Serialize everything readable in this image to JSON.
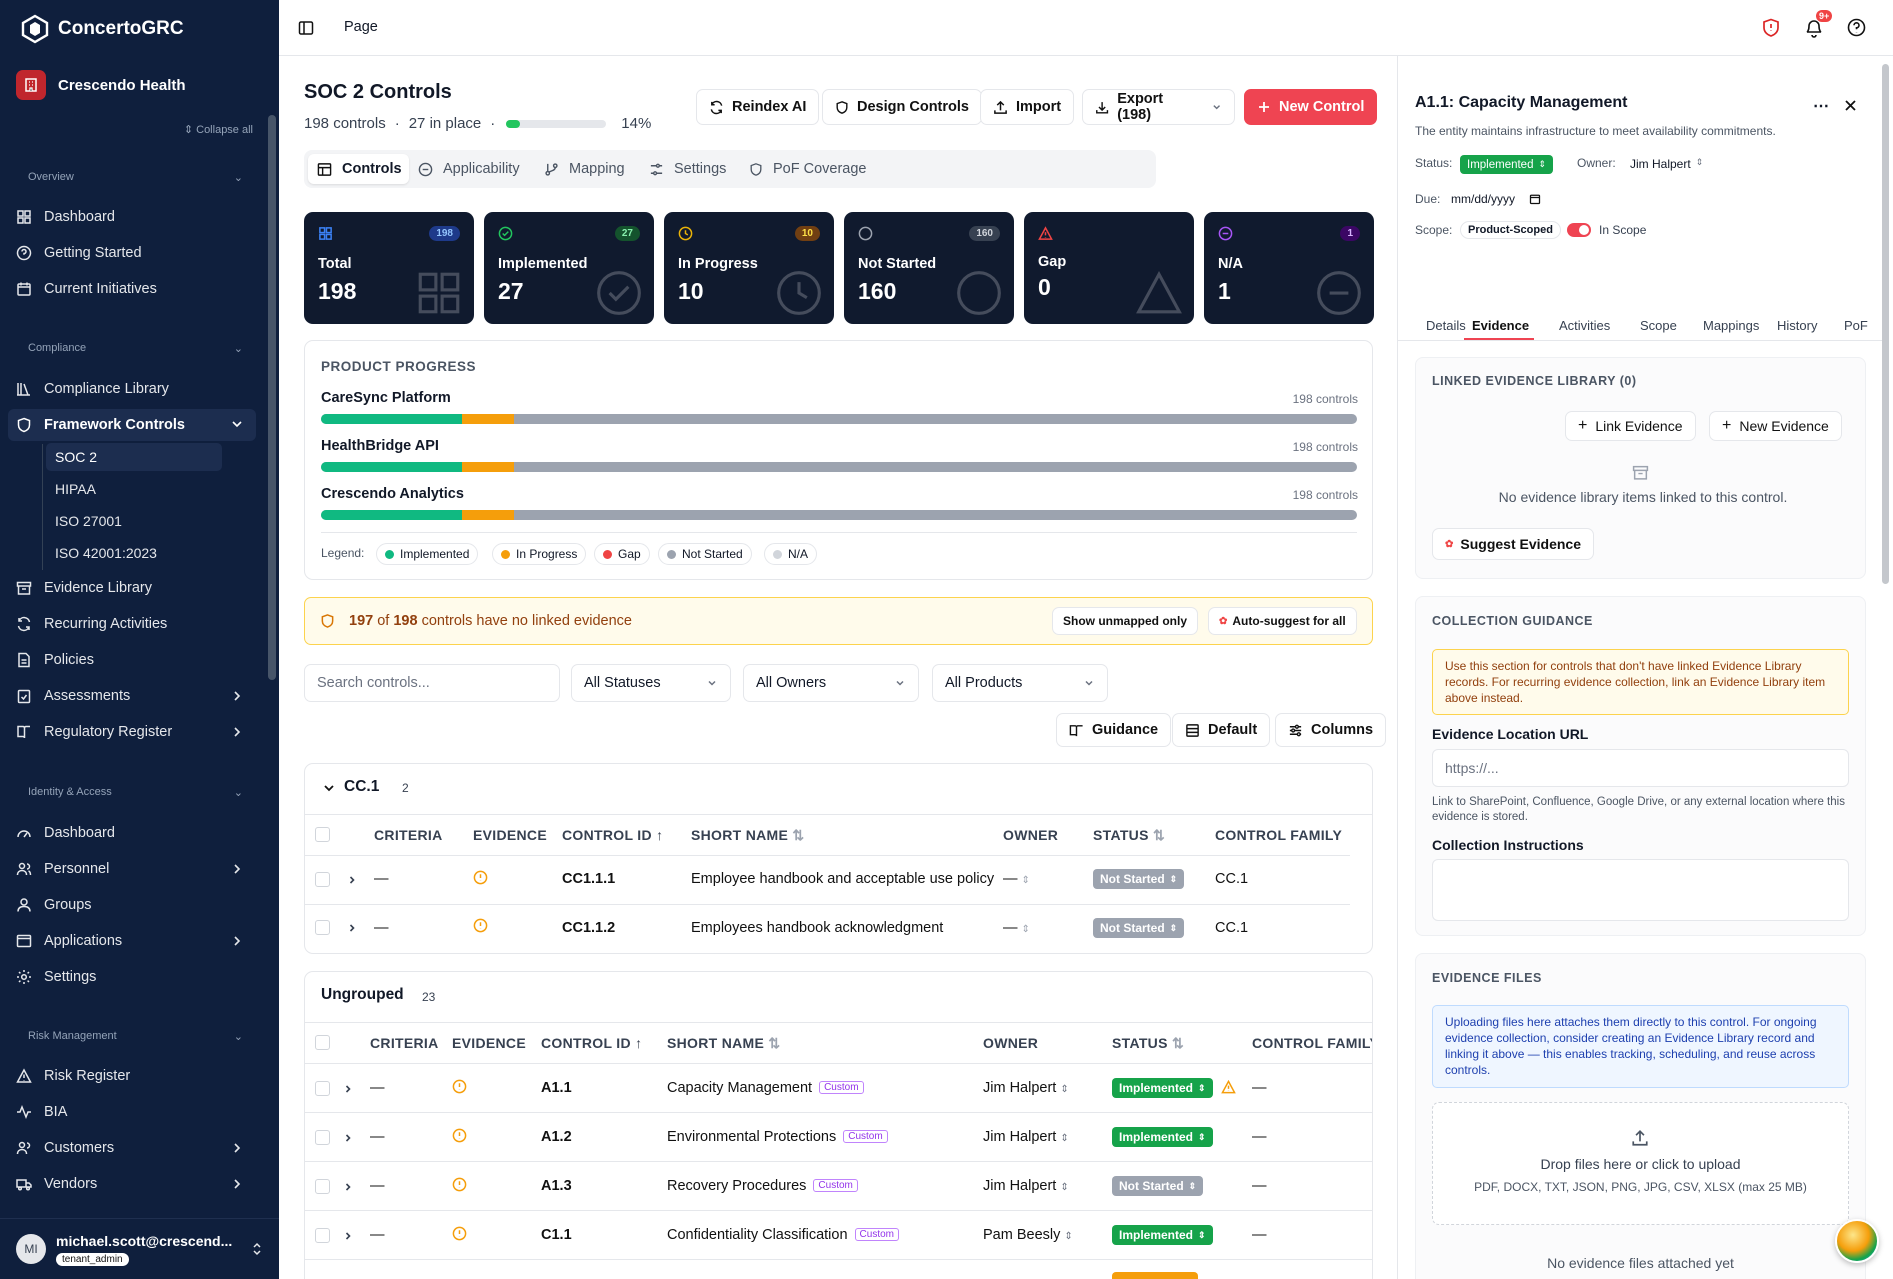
{
  "app": {
    "name": "ConcertoGRC",
    "org": "Crescendo Health",
    "collapse_all": "Collapse all"
  },
  "sidebar": {
    "sections": {
      "overview": "Overview",
      "compliance": "Compliance",
      "identity": "Identity & Access",
      "risk": "Risk Management"
    },
    "overview": [
      "Dashboard",
      "Getting Started",
      "Current Initiatives"
    ],
    "compliance": [
      "Compliance Library",
      "Framework Controls",
      "Evidence Library",
      "Recurring Activities",
      "Policies",
      "Assessments",
      "Regulatory Register"
    ],
    "frameworks": [
      "SOC 2",
      "HIPAA",
      "ISO 27001",
      "ISO 42001:2023"
    ],
    "identity": [
      "Dashboard",
      "Personnel",
      "Groups",
      "Applications",
      "Settings"
    ],
    "risk": [
      "Risk Register",
      "BIA",
      "Customers",
      "Vendors"
    ],
    "user": {
      "initials": "MI",
      "email": "michael.scott@crescend...",
      "role": "tenant_admin"
    }
  },
  "topbar": {
    "breadcrumb": "Page",
    "notif_badge": "9+"
  },
  "header": {
    "title": "SOC 2 Controls",
    "count": "198 controls",
    "in_place": "27 in place",
    "percent": "14%",
    "progress": 0.14
  },
  "actions": {
    "reindex": "Reindex AI",
    "design": "Design Controls",
    "import": "Import",
    "export": "Export (198)",
    "new": "New Control"
  },
  "tabs": [
    "Controls",
    "Applicability",
    "Mapping",
    "Settings",
    "PoF Coverage"
  ],
  "stats": [
    {
      "label": "Total",
      "value": "198",
      "badge": "198",
      "color": "#3b82f6"
    },
    {
      "label": "Implemented",
      "value": "27",
      "badge": "27",
      "color": "#22c55e"
    },
    {
      "label": "In Progress",
      "value": "10",
      "badge": "10",
      "color": "#eab308"
    },
    {
      "label": "Not Started",
      "value": "160",
      "badge": "160",
      "color": "#9ca3af"
    },
    {
      "label": "Gap",
      "value": "0",
      "badge": "",
      "color": "#ef4444"
    },
    {
      "label": "N/A",
      "value": "1",
      "badge": "1",
      "color": "#a855f7"
    }
  ],
  "product_progress": {
    "title": "PRODUCT PROGRESS",
    "legend_label": "Legend:",
    "products": [
      {
        "name": "CareSync Platform",
        "count": "198 controls",
        "implemented": 0.136,
        "in_progress": 0.05
      },
      {
        "name": "HealthBridge API",
        "count": "198 controls",
        "implemented": 0.136,
        "in_progress": 0.05
      },
      {
        "name": "Crescendo Analytics",
        "count": "198 controls",
        "implemented": 0.136,
        "in_progress": 0.05
      }
    ],
    "legend": [
      {
        "label": "Implemented",
        "color": "#10b981"
      },
      {
        "label": "In Progress",
        "color": "#f59e0b"
      },
      {
        "label": "Gap",
        "color": "#ef4444"
      },
      {
        "label": "Not Started",
        "color": "#9ca3af"
      },
      {
        "label": "N/A",
        "color": "#d1d5db"
      }
    ]
  },
  "alert": {
    "count": "197",
    "total": "198",
    "pre": "of",
    "text": "controls have no linked evidence",
    "unmapped": "Show unmapped only",
    "autosuggest": "Auto-suggest for all"
  },
  "filters": {
    "search_placeholder": "Search controls...",
    "status": "All Statuses",
    "owner": "All Owners",
    "product": "All Products"
  },
  "view": {
    "guidance": "Guidance",
    "default": "Default",
    "columns": "Columns"
  },
  "columns": {
    "criteria": "CRITERIA",
    "evidence": "EVIDENCE",
    "control_id": "CONTROL ID",
    "short_name": "SHORT NAME",
    "owner": "OWNER",
    "status": "STATUS",
    "family": "CONTROL FAMILY"
  },
  "group1": {
    "name": "CC.1",
    "count": "2",
    "rows": [
      {
        "criteria": "—",
        "id": "CC1.1.1",
        "name": "Employee handbook and acceptable use policy",
        "owner": "—",
        "status": "Not Started",
        "family": "CC.1"
      },
      {
        "criteria": "—",
        "id": "CC1.1.2",
        "name": "Employees handbook acknowledgment",
        "owner": "—",
        "status": "Not Started",
        "family": "CC.1"
      }
    ]
  },
  "group2": {
    "name": "Ungrouped",
    "count": "23",
    "custom": "Custom",
    "rows": [
      {
        "criteria": "—",
        "id": "A1.1",
        "name": "Capacity Management",
        "owner": "Jim Halpert",
        "status": "Implemented",
        "family": "—"
      },
      {
        "criteria": "—",
        "id": "A1.2",
        "name": "Environmental Protections",
        "owner": "Jim Halpert",
        "status": "Implemented",
        "family": "—"
      },
      {
        "criteria": "—",
        "id": "A1.3",
        "name": "Recovery Procedures",
        "owner": "Jim Halpert",
        "status": "Not Started",
        "family": "—"
      },
      {
        "criteria": "—",
        "id": "C1.1",
        "name": "Confidentiality Classification",
        "owner": "Pam Beesly",
        "status": "Implemented",
        "family": "—"
      }
    ]
  },
  "detail": {
    "title": "A1.1: Capacity Management",
    "desc": "The entity maintains infrastructure to meet availability commitments.",
    "status_label": "Status:",
    "status": "Implemented",
    "owner_label": "Owner:",
    "owner": "Jim Halpert",
    "due_label": "Due:",
    "due_placeholder": "mm/dd/yyyy",
    "scope_label": "Scope:",
    "scope": "Product-Scoped",
    "in_scope": "In Scope",
    "tabs": [
      "Details",
      "Evidence",
      "Activities",
      "Scope",
      "Mappings",
      "History",
      "PoF"
    ],
    "linked_title": "LINKED EVIDENCE LIBRARY (0)",
    "link": "Link Evidence",
    "new_evidence": "New Evidence",
    "no_linked": "No evidence library items linked to this control.",
    "suggest": "Suggest Evidence",
    "guidance_title": "COLLECTION GUIDANCE",
    "guidance_note": "Use this section for controls that don't have linked Evidence Library records. For recurring evidence collection, link an Evidence Library item above instead.",
    "url_label": "Evidence Location URL",
    "url_placeholder": "https://...",
    "url_help": "Link to SharePoint, Confluence, Google Drive, or any external location where this evidence is stored.",
    "instructions_label": "Collection Instructions",
    "files_title": "EVIDENCE FILES",
    "files_note": "Uploading files here attaches them directly to this control. For ongoing evidence collection, consider creating an Evidence Library record and linking it above — this enables tracking, scheduling, and reuse across controls.",
    "drop": "Drop files here or click to upload",
    "formats": "PDF, DOCX, TXT, JSON, PNG, JPG, CSV, XLSX (max 25 MB)",
    "no_files": "No evidence files attached yet"
  }
}
